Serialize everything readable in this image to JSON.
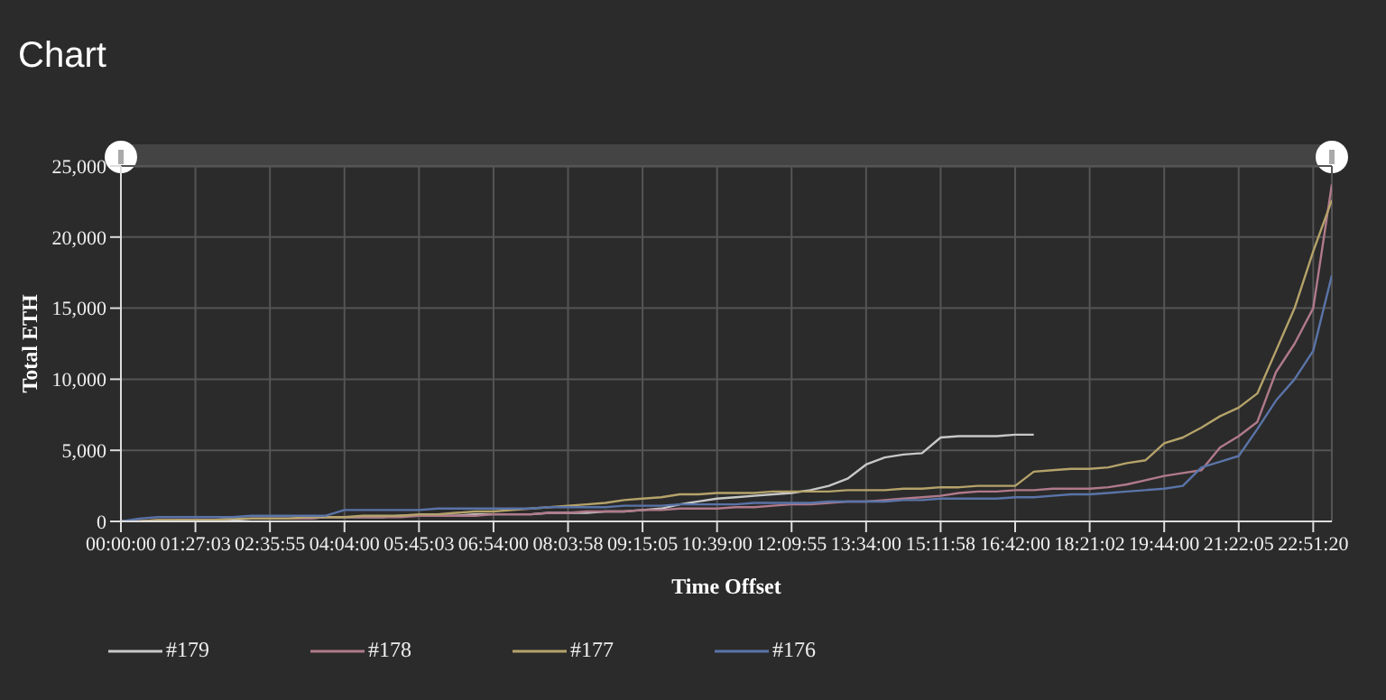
{
  "chart_data": {
    "type": "line",
    "title": "Chart",
    "xlabel": "Time Offset",
    "ylabel": "Total ETH",
    "categories": [
      "00:00:00",
      null,
      null,
      null,
      "01:27:03",
      null,
      null,
      null,
      "02:35:55",
      null,
      null,
      null,
      "04:04:00",
      null,
      null,
      null,
      "05:45:03",
      null,
      null,
      null,
      "06:54:00",
      null,
      null,
      null,
      "08:03:58",
      null,
      null,
      null,
      "09:15:05",
      null,
      null,
      null,
      "10:39:00",
      null,
      null,
      null,
      "12:09:55",
      null,
      null,
      null,
      "13:34:00",
      null,
      null,
      null,
      "15:11:58",
      null,
      null,
      null,
      "16:42:00",
      null,
      null,
      null,
      "18:21:02",
      null,
      null,
      null,
      "19:44:00",
      null,
      null,
      null,
      "21:22:05",
      null,
      null,
      null,
      "22:51:20",
      null
    ],
    "series": [
      {
        "name": "#179",
        "color": "#c8c8c8",
        "values": [
          0,
          0,
          0,
          100,
          100,
          100,
          100,
          200,
          200,
          200,
          200,
          300,
          300,
          300,
          300,
          400,
          400,
          400,
          400,
          500,
          500,
          500,
          500,
          600,
          600,
          600,
          700,
          700,
          800,
          900,
          1200,
          1400,
          1600,
          1700,
          1800,
          1900,
          2000,
          2200,
          2500,
          3000,
          4000,
          4500,
          4700,
          4800,
          5900,
          6000,
          6000,
          6000,
          6100,
          6100,
          null,
          null,
          null,
          null,
          null,
          null,
          null,
          null,
          null,
          null,
          null,
          null,
          null,
          null,
          null,
          null
        ]
      },
      {
        "name": "#178",
        "color": "#b07a8a",
        "values": [
          0,
          0,
          100,
          100,
          100,
          100,
          200,
          200,
          200,
          200,
          200,
          300,
          300,
          300,
          300,
          300,
          400,
          400,
          400,
          400,
          500,
          500,
          500,
          600,
          600,
          700,
          700,
          700,
          800,
          800,
          900,
          900,
          900,
          1000,
          1000,
          1100,
          1200,
          1200,
          1300,
          1400,
          1400,
          1500,
          1600,
          1700,
          1800,
          2000,
          2100,
          2100,
          2200,
          2200,
          2300,
          2300,
          2300,
          2400,
          2600,
          2900,
          3200,
          3400,
          3600,
          5200,
          6000,
          7000,
          10500,
          12500,
          15000,
          23700
        ]
      },
      {
        "name": "#177",
        "color": "#b5a36a",
        "values": [
          0,
          0,
          100,
          100,
          100,
          100,
          200,
          200,
          200,
          200,
          300,
          300,
          300,
          400,
          400,
          400,
          500,
          500,
          600,
          700,
          700,
          800,
          900,
          1000,
          1100,
          1200,
          1300,
          1500,
          1600,
          1700,
          1900,
          1900,
          2000,
          2000,
          2000,
          2100,
          2100,
          2100,
          2100,
          2200,
          2200,
          2200,
          2300,
          2300,
          2400,
          2400,
          2500,
          2500,
          2500,
          3500,
          3600,
          3700,
          3700,
          3800,
          4100,
          4300,
          5500,
          5900,
          6600,
          7400,
          8000,
          9000,
          12000,
          15000,
          19000,
          22600
        ]
      },
      {
        "name": "#176",
        "color": "#5a74a8",
        "values": [
          0,
          200,
          300,
          300,
          300,
          300,
          300,
          400,
          400,
          400,
          400,
          400,
          800,
          800,
          800,
          800,
          800,
          900,
          900,
          900,
          900,
          900,
          900,
          1000,
          1000,
          1000,
          1000,
          1100,
          1100,
          1100,
          1200,
          1200,
          1200,
          1200,
          1300,
          1300,
          1300,
          1300,
          1400,
          1400,
          1400,
          1400,
          1500,
          1500,
          1600,
          1600,
          1600,
          1600,
          1700,
          1700,
          1800,
          1900,
          1900,
          2000,
          2100,
          2200,
          2300,
          2500,
          3800,
          4200,
          4600,
          6500,
          8500,
          10000,
          12000,
          17300
        ]
      }
    ],
    "ylim": [
      0,
      25000
    ],
    "yticks": [
      {
        "value": 0,
        "label": "0"
      },
      {
        "value": 5000,
        "label": "5,000"
      },
      {
        "value": 10000,
        "label": "10,000"
      },
      {
        "value": 15000,
        "label": "15,000"
      },
      {
        "value": 20000,
        "label": "20,000"
      },
      {
        "value": 25000,
        "label": "25,000"
      }
    ],
    "grid": true,
    "legend": "bottom left",
    "marker": "none",
    "line_style": "solid"
  }
}
